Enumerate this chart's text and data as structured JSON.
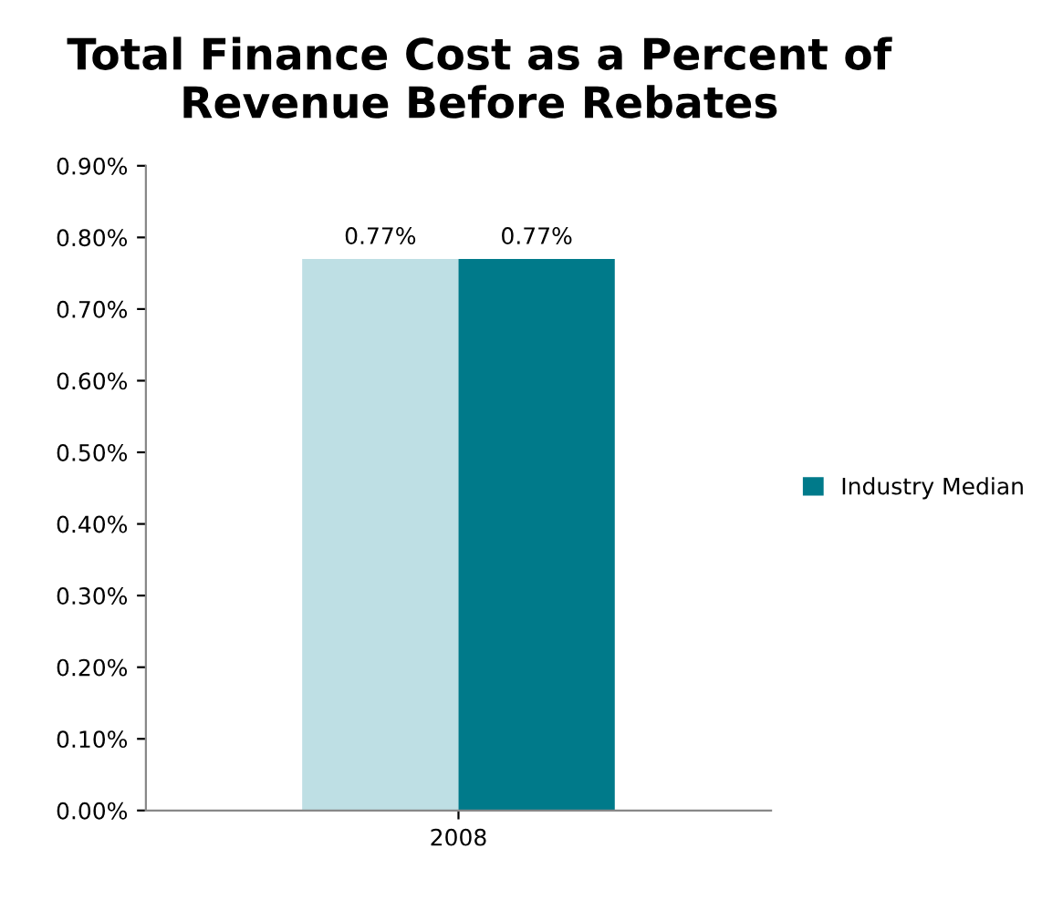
{
  "chart_data": {
    "type": "bar",
    "title": "Total Finance Cost as a Percent of Revenue Before Rebates",
    "categories": [
      "2008"
    ],
    "series": [
      {
        "color": "#bedfe4",
        "values": [
          0.77
        ],
        "value_labels": [
          "0.77%"
        ]
      },
      {
        "name": "Industry Median",
        "color": "#007a8a",
        "values": [
          0.77
        ],
        "value_labels": [
          "0.77%"
        ]
      }
    ],
    "ylim": [
      0,
      0.9
    ],
    "yticks": [
      {
        "value": 0,
        "label": "0.00%"
      },
      {
        "value": 0.1,
        "label": "0.10%"
      },
      {
        "value": 0.2,
        "label": "0.20%"
      },
      {
        "value": 0.3,
        "label": "0.30%"
      },
      {
        "value": 0.4,
        "label": "0.40%"
      },
      {
        "value": 0.5,
        "label": "0.50%"
      },
      {
        "value": 0.6,
        "label": "0.60%"
      },
      {
        "value": 0.7,
        "label": "0.70%"
      },
      {
        "value": 0.8,
        "label": "0.80%"
      },
      {
        "value": 0.9,
        "label": "0.90%"
      }
    ],
    "grid": false,
    "legend": "right"
  }
}
